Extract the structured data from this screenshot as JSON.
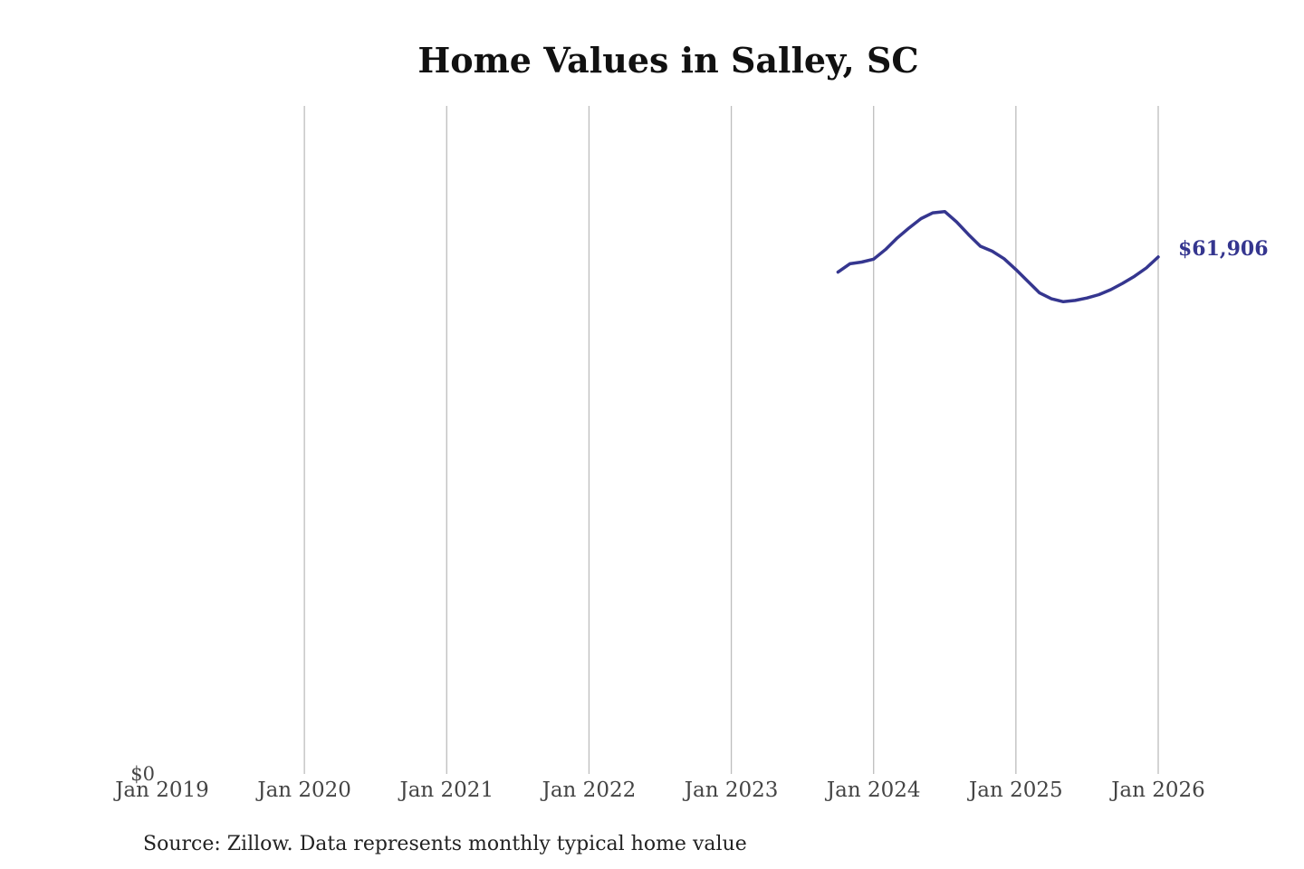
{
  "chart_data": {
    "type": "line",
    "title": "Home Values in Salley, SC",
    "xlabel": "",
    "ylabel": "",
    "x_ticks": [
      "Jan 2019",
      "Jan 2020",
      "Jan 2021",
      "Jan 2022",
      "Jan 2023",
      "Jan 2024",
      "Jan 2025",
      "Jan 2026"
    ],
    "y_ticks": [
      {
        "value": 0,
        "label": "$0"
      }
    ],
    "ylim": [
      0,
      80000
    ],
    "xlim": [
      "2019-01",
      "2026-01"
    ],
    "grid": "vertical",
    "line_color": "#35368f",
    "series": [
      {
        "points": [
          {
            "x": "2023-10",
            "y": 60100
          },
          {
            "x": "2023-11",
            "y": 61100
          },
          {
            "x": "2023-12",
            "y": 61300
          },
          {
            "x": "2024-01",
            "y": 61650
          },
          {
            "x": "2024-02",
            "y": 62800
          },
          {
            "x": "2024-03",
            "y": 64200
          },
          {
            "x": "2024-04",
            "y": 65400
          },
          {
            "x": "2024-05",
            "y": 66500
          },
          {
            "x": "2024-06",
            "y": 67200
          },
          {
            "x": "2024-07",
            "y": 67350
          },
          {
            "x": "2024-08",
            "y": 66100
          },
          {
            "x": "2024-09",
            "y": 64600
          },
          {
            "x": "2024-10",
            "y": 63200
          },
          {
            "x": "2024-11",
            "y": 62600
          },
          {
            "x": "2024-12",
            "y": 61700
          },
          {
            "x": "2025-01",
            "y": 60400
          },
          {
            "x": "2025-02",
            "y": 59000
          },
          {
            "x": "2025-03",
            "y": 57600
          },
          {
            "x": "2025-04",
            "y": 56900
          },
          {
            "x": "2025-05",
            "y": 56550
          },
          {
            "x": "2025-06",
            "y": 56700
          },
          {
            "x": "2025-07",
            "y": 57000
          },
          {
            "x": "2025-08",
            "y": 57400
          },
          {
            "x": "2025-09",
            "y": 58000
          },
          {
            "x": "2025-10",
            "y": 58750
          },
          {
            "x": "2025-11",
            "y": 59600
          },
          {
            "x": "2025-12",
            "y": 60600
          },
          {
            "x": "2026-01",
            "y": 61906
          }
        ]
      }
    ],
    "end_label": "$61,906"
  },
  "source_note": "Source: Zillow. Data represents monthly typical home value"
}
